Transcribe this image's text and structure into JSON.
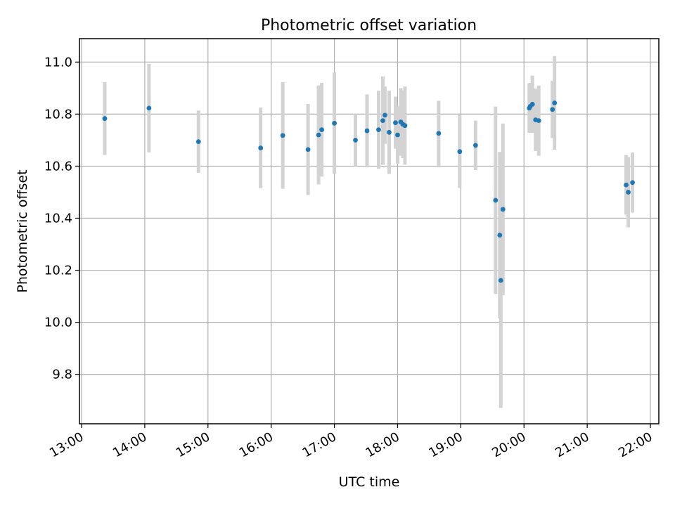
{
  "chart_data": {
    "type": "scatter",
    "title": "Photometric offset variation",
    "xlabel": "UTC time",
    "ylabel": "Photometric offset",
    "x_format": "time-of-day",
    "xlim": [
      "12:58",
      "22:08"
    ],
    "ylim": [
      9.61,
      11.09
    ],
    "x_ticks": [
      "13:00",
      "14:00",
      "15:00",
      "16:00",
      "17:00",
      "18:00",
      "19:00",
      "20:00",
      "21:00",
      "22:00"
    ],
    "y_ticks": [
      9.8,
      10.0,
      10.2,
      10.4,
      10.6,
      10.8,
      11.0
    ],
    "y_tick_labels": [
      "9.8",
      "10.0",
      "10.2",
      "10.4",
      "10.6",
      "10.8",
      "11.0"
    ],
    "grid": true,
    "colors": {
      "points": "#1f77b4",
      "errorbars": "#d3d3d3",
      "grid": "#b0b0b0"
    },
    "points": [
      {
        "x": "13:22",
        "y": 10.783,
        "err": 0.14
      },
      {
        "x": "14:04",
        "y": 10.823,
        "err": 0.17
      },
      {
        "x": "14:51",
        "y": 10.694,
        "err": 0.12
      },
      {
        "x": "15:50",
        "y": 10.67,
        "err": 0.155
      },
      {
        "x": "16:11",
        "y": 10.718,
        "err": 0.205
      },
      {
        "x": "16:35",
        "y": 10.664,
        "err": 0.175
      },
      {
        "x": "16:45",
        "y": 10.72,
        "err": 0.19
      },
      {
        "x": "16:48",
        "y": 10.74,
        "err": 0.18
      },
      {
        "x": "17:00",
        "y": 10.765,
        "err": 0.195
      },
      {
        "x": "17:20",
        "y": 10.7,
        "err": 0.1
      },
      {
        "x": "17:31",
        "y": 10.736,
        "err": 0.14
      },
      {
        "x": "17:42",
        "y": 10.74,
        "err": 0.15
      },
      {
        "x": "17:46",
        "y": 10.775,
        "err": 0.17
      },
      {
        "x": "17:48",
        "y": 10.796,
        "err": 0.11
      },
      {
        "x": "17:52",
        "y": 10.73,
        "err": 0.16
      },
      {
        "x": "17:58",
        "y": 10.767,
        "err": 0.1
      },
      {
        "x": "18:00",
        "y": 10.72,
        "err": 0.11
      },
      {
        "x": "18:03",
        "y": 10.77,
        "err": 0.13
      },
      {
        "x": "18:05",
        "y": 10.761,
        "err": 0.13
      },
      {
        "x": "18:07",
        "y": 10.756,
        "err": 0.15
      },
      {
        "x": "18:39",
        "y": 10.726,
        "err": 0.125
      },
      {
        "x": "18:59",
        "y": 10.656,
        "err": 0.14
      },
      {
        "x": "19:14",
        "y": 10.68,
        "err": 0.095
      },
      {
        "x": "19:33",
        "y": 10.469,
        "err": 0.36
      },
      {
        "x": "19:37",
        "y": 10.335,
        "err": 0.32
      },
      {
        "x": "19:38",
        "y": 10.161,
        "err": 0.49
      },
      {
        "x": "19:40",
        "y": 10.434,
        "err": 0.33
      },
      {
        "x": "20:05",
        "y": 10.823,
        "err": 0.095
      },
      {
        "x": "20:06",
        "y": 10.83,
        "err": 0.09
      },
      {
        "x": "20:08",
        "y": 10.838,
        "err": 0.11
      },
      {
        "x": "20:11",
        "y": 10.778,
        "err": 0.12
      },
      {
        "x": "20:14",
        "y": 10.775,
        "err": 0.135
      },
      {
        "x": "20:27",
        "y": 10.818,
        "err": 0.11
      },
      {
        "x": "20:29",
        "y": 10.843,
        "err": 0.18
      },
      {
        "x": "21:37",
        "y": 10.528,
        "err": 0.115
      },
      {
        "x": "21:39",
        "y": 10.5,
        "err": 0.135
      },
      {
        "x": "21:43",
        "y": 10.537,
        "err": 0.115
      }
    ]
  }
}
